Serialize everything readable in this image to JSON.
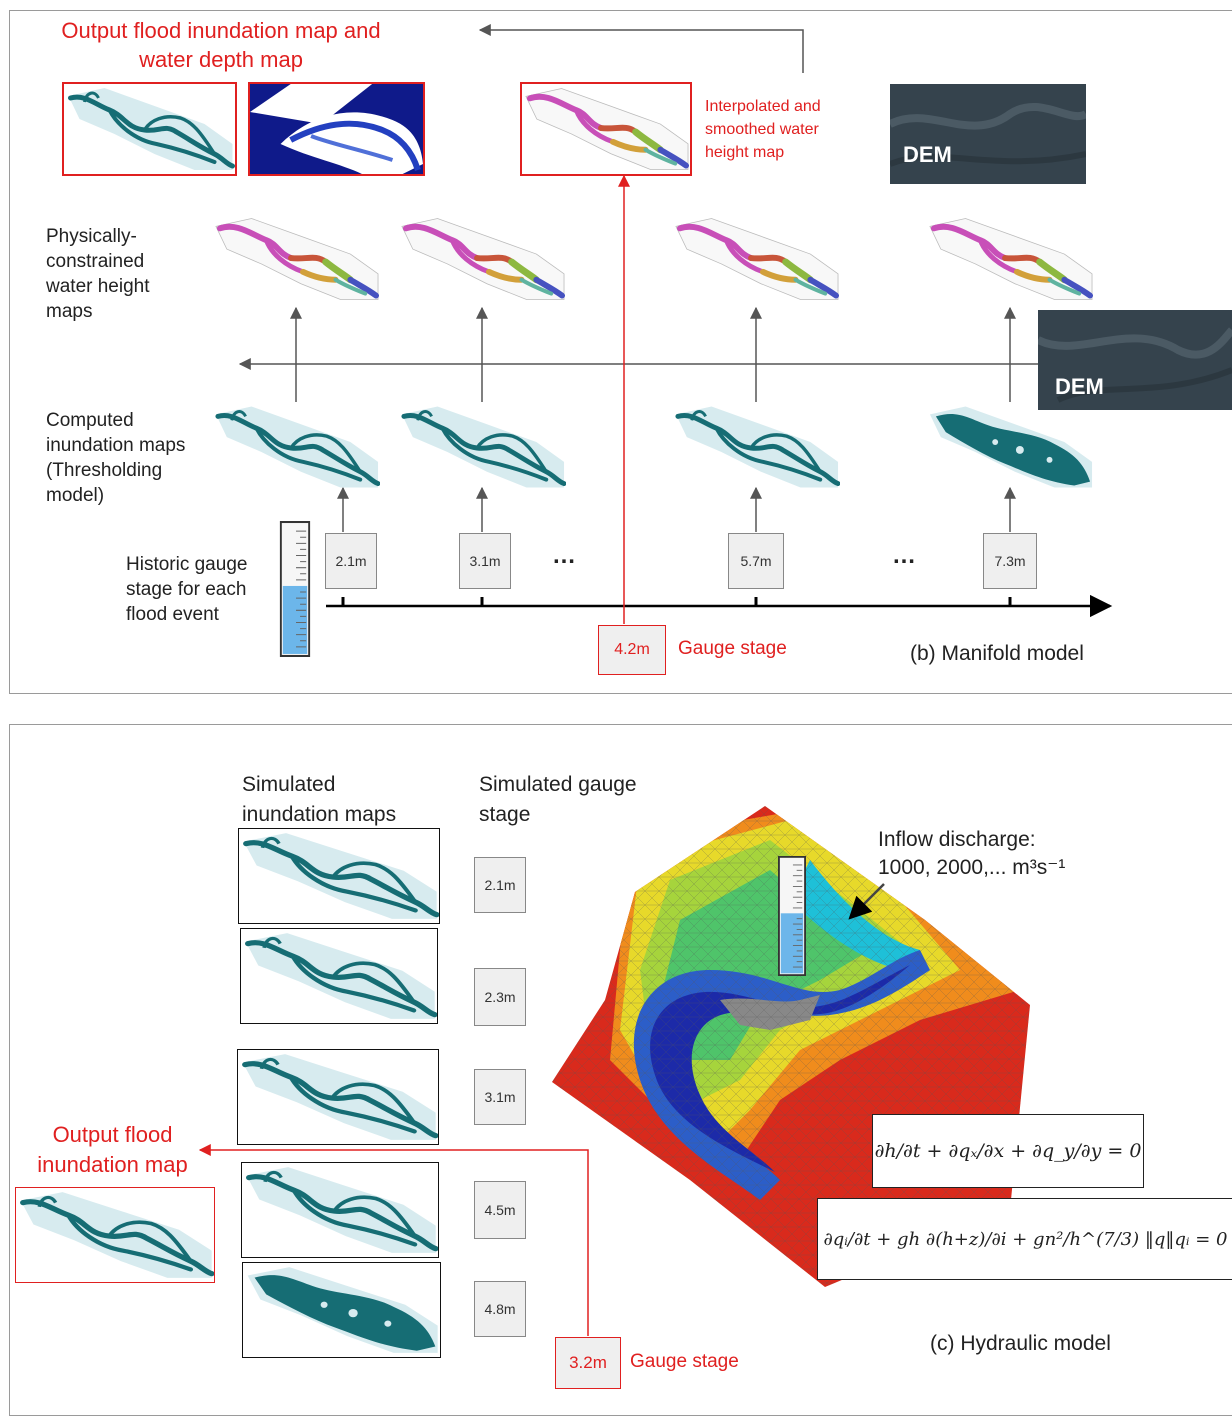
{
  "colors": {
    "accent_red": "#e02020",
    "river_teal": "#166d74",
    "floodplain": "#d7ebef",
    "dem_gray": "#35434d",
    "gauge_blue": "#6cb6ea"
  },
  "manifold": {
    "output_title": "Output flood inundation map and water depth map",
    "interp_label": "Interpolated and smoothed water height map",
    "dem_label": "DEM",
    "dem_label_2": "DEM",
    "row_heights": "Physically-constrained water height maps",
    "row_inund": "Computed inundation maps (Thresholding model)",
    "row_gauge": "Historic gauge stage for each flood event",
    "stages": [
      "2.1m",
      "3.1m",
      "5.7m",
      "7.3m"
    ],
    "ellipsis": "…",
    "gauge_value": "4.2m",
    "gauge_label": "Gauge stage",
    "caption": "(b) Manifold model"
  },
  "hydraulic": {
    "col_maps": "Simulated inundation maps",
    "col_stage": "Simulated gauge stage",
    "stages": [
      "2.1m",
      "2.3m",
      "3.1m",
      "4.5m",
      "4.8m"
    ],
    "output_label": "Output flood inundation map",
    "inflow_label": "Inflow discharge:",
    "inflow_values": "1000, 2000,... m³s⁻¹",
    "gauge_value": "3.2m",
    "gauge_label": "Gauge stage",
    "caption": "(c) Hydraulic model",
    "eq1": "∂h/∂t + ∂qₓ/∂x + ∂q_y/∂y = 0",
    "eq2": "∂qᵢ/∂t + gh ∂(h+z)/∂i + gn²/h^(7/3) ‖q‖qᵢ = 0"
  }
}
